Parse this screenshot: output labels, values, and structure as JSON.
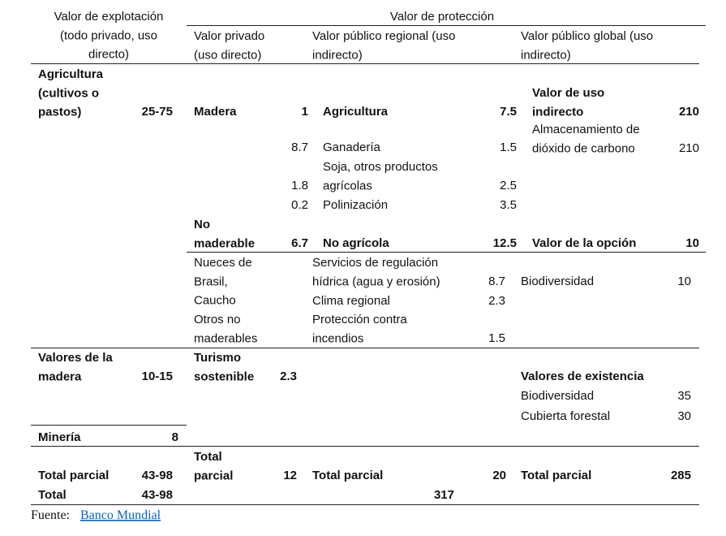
{
  "header": {
    "exploitation": [
      "Valor de explotación",
      "(todo privado, uso",
      "directo)"
    ],
    "protection": "Valor de protección",
    "private": [
      "Valor privado",
      "(uso directo)"
    ],
    "regional": [
      "Valor público regional (uso",
      "indirecto)"
    ],
    "global": [
      "Valor público global (uso",
      "indirecto)"
    ]
  },
  "table": {
    "cells": [
      {
        "lines": [
          "Agricultura",
          "(cultivos o",
          "pastos)"
        ],
        "value": "25-75"
      },
      {
        "lines": [
          "Madera"
        ],
        "value": 1
      },
      {
        "value": 8.7
      },
      {
        "value": 1.8
      },
      {
        "value": 0.2
      },
      {
        "lines": [
          "Agricultura"
        ],
        "value": 7.5
      },
      {
        "lines": [
          "Ganadería"
        ],
        "value": 1.5
      },
      {
        "lines": [
          "Soja, otros productos",
          "agrícolas"
        ],
        "value": 2.5
      },
      {
        "lines": [
          "Polinización"
        ],
        "value": 3.5
      },
      {
        "lines": [
          "Valor de uso",
          "indirecto"
        ],
        "value": 210
      },
      {
        "lines": [
          "Almacenamiento de",
          "dióxido de carbono"
        ],
        "value": 210
      },
      {
        "lines": [
          "No",
          "maderable"
        ],
        "value": 6.7
      },
      {
        "lines": [
          "No agrícola"
        ],
        "value": 12.5
      },
      {
        "lines": [
          "Valor de la opción"
        ],
        "value": 10
      },
      {
        "lines": [
          "Nueces de",
          "Brasil,",
          "Caucho"
        ]
      },
      {
        "lines": [
          "Otros no",
          "maderables"
        ]
      },
      {
        "lines": [
          "Servicios de regulación",
          "hídrica (agua y erosión)"
        ],
        "value": 8.7
      },
      {
        "lines": [
          "Clima regional"
        ],
        "value": 2.3
      },
      {
        "lines": [
          "Protección contra",
          "incendios"
        ],
        "value": 1.5
      },
      {
        "lines": [
          "Biodiversidad"
        ],
        "value": 10
      },
      {
        "lines": [
          "Valores de la",
          "madera"
        ],
        "value": "10-15"
      },
      {
        "lines": [
          "Turismo",
          "sostenible"
        ],
        "value": 2.3
      },
      {
        "lines": [
          "Valores de existencia"
        ]
      },
      {
        "lines": [
          "Biodiversidad"
        ],
        "value": 35
      },
      {
        "lines": [
          "Cubierta forestal"
        ],
        "value": 30
      },
      {
        "lines": [
          "Minería"
        ],
        "value": 8
      },
      {
        "lines": [
          "Total parcial"
        ],
        "value": "43-98"
      },
      {
        "lines": [
          "Total",
          "parcial"
        ],
        "value": 12
      },
      {
        "lines": [
          "Total parcial"
        ],
        "value": 20
      },
      {
        "lines": [
          "Total parcial"
        ],
        "value": 285
      },
      {
        "lines": [
          "Total"
        ],
        "value": "43-98"
      },
      {
        "value": 317
      }
    ]
  },
  "source": {
    "label": "Fuente:",
    "link": "Banco Mundial"
  }
}
